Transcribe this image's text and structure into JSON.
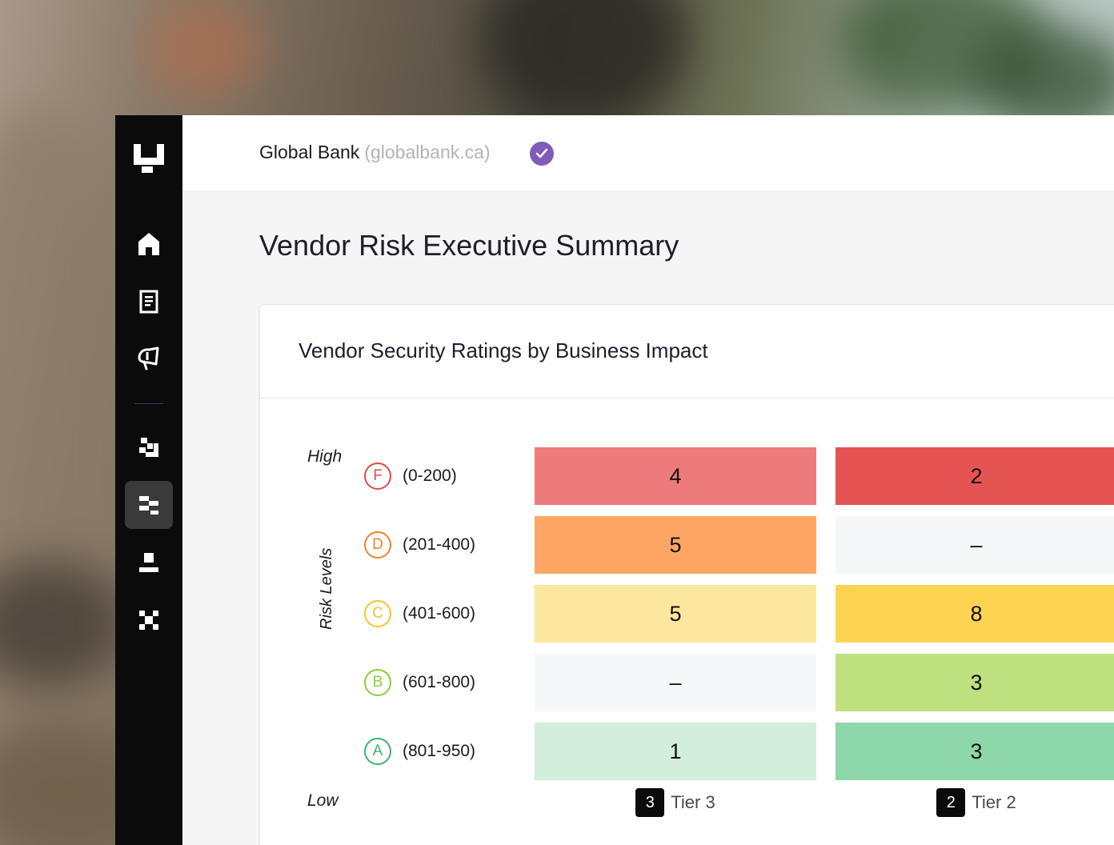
{
  "org": {
    "name": "Global Bank",
    "domain": "(globalbank.ca)",
    "verified_icon": "check-circle-icon"
  },
  "page": {
    "title": "Vendor Risk Executive Summary"
  },
  "sidebar": {
    "items": [
      {
        "icon": "home-icon",
        "active": false
      },
      {
        "icon": "document-icon",
        "active": false
      },
      {
        "icon": "megaphone-icon",
        "active": false
      },
      {
        "icon": "pixel-squares-icon",
        "active": false
      },
      {
        "icon": "hierarchy-icon",
        "active": true
      },
      {
        "icon": "stand-icon",
        "active": false
      },
      {
        "icon": "x-grid-icon",
        "active": false
      }
    ]
  },
  "card": {
    "title": "Vendor Security Ratings by Business Impact"
  },
  "matrix": {
    "axis_high": "High",
    "axis_low": "Low",
    "axis_title": "Risk Levels",
    "grades": [
      {
        "letter": "F",
        "range": "(0-200)",
        "color": "#e04848"
      },
      {
        "letter": "D",
        "range": "(201-400)",
        "color": "#f08228"
      },
      {
        "letter": "C",
        "range": "(401-600)",
        "color": "#f5c42c"
      },
      {
        "letter": "B",
        "range": "(601-800)",
        "color": "#8ccc3c"
      },
      {
        "letter": "A",
        "range": "(801-950)",
        "color": "#3bb56e"
      }
    ],
    "tiers": [
      {
        "number": "3",
        "label": "Tier 3",
        "values": [
          "4",
          "5",
          "5",
          "–",
          "1"
        ],
        "colors": [
          "#ee7b7b",
          "#ffa665",
          "#fde69e",
          "#f6f7f9",
          "#d3eedd"
        ]
      },
      {
        "number": "2",
        "label": "Tier 2",
        "values": [
          "2",
          "–",
          "8",
          "3",
          "3"
        ],
        "colors": [
          "#e65353",
          "#f6f7f9",
          "#fdd452",
          "#bfe07e",
          "#8ed7aa"
        ]
      }
    ]
  }
}
